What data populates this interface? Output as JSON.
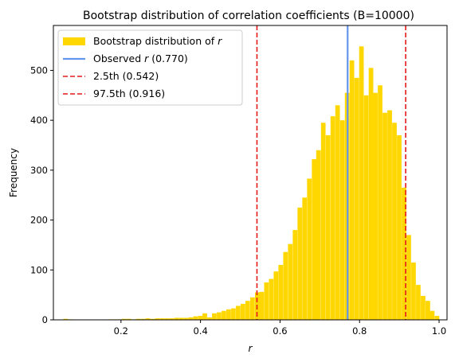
{
  "chart_data": {
    "type": "bar",
    "title": "Bootstrap distribution of correlation coefficients (B=10000)",
    "xlabel": "r",
    "ylabel": "Frequency",
    "xlim": [
      0.03,
      1.02
    ],
    "ylim": [
      0,
      590
    ],
    "xticks": [
      0.2,
      0.4,
      0.6,
      0.8,
      1.0
    ],
    "xtick_labels": [
      "0.2",
      "0.4",
      "0.6",
      "0.8",
      "1.0"
    ],
    "yticks": [
      0,
      100,
      200,
      300,
      400,
      500
    ],
    "ytick_labels": [
      "0",
      "100",
      "200",
      "300",
      "400",
      "500"
    ],
    "grid": false,
    "legend_position": "upper-left",
    "bin_width": 0.0115,
    "bin_starts": [
      0.055,
      0.069,
      0.166,
      0.178,
      0.19,
      0.202,
      0.214,
      0.226,
      0.238,
      0.25,
      0.262,
      0.274,
      0.286,
      0.298,
      0.31,
      0.322,
      0.334,
      0.346,
      0.358,
      0.37,
      0.382,
      0.394,
      0.405,
      0.417,
      0.429,
      0.441,
      0.453,
      0.465,
      0.477,
      0.489,
      0.501,
      0.513,
      0.525,
      0.537,
      0.548,
      0.56,
      0.572,
      0.584,
      0.596,
      0.608,
      0.62,
      0.632,
      0.644,
      0.656,
      0.668,
      0.68,
      0.691,
      0.703,
      0.715,
      0.727,
      0.739,
      0.751,
      0.763,
      0.775,
      0.787,
      0.799,
      0.811,
      0.823,
      0.834,
      0.846,
      0.858,
      0.87,
      0.882,
      0.894,
      0.906,
      0.918,
      0.93,
      0.942,
      0.954,
      0.966,
      0.977,
      0.989
    ],
    "values": [
      2,
      1,
      1,
      1,
      1,
      2,
      2,
      1,
      2,
      2,
      3,
      2,
      3,
      3,
      3,
      3,
      4,
      4,
      4,
      5,
      7,
      8,
      13,
      5,
      13,
      15,
      18,
      21,
      23,
      28,
      32,
      38,
      45,
      55,
      56,
      75,
      82,
      97,
      110,
      136,
      152,
      180,
      225,
      245,
      283,
      322,
      340,
      395,
      370,
      408,
      430,
      400,
      455,
      520,
      485,
      548,
      450,
      505,
      455,
      470,
      415,
      420,
      395,
      370,
      265,
      170,
      115,
      70,
      48,
      38,
      18,
      8
    ],
    "fill_color": "#ffd700",
    "series": [
      {
        "name": "Bootstrap distribution of r",
        "legend_label": "Bootstrap distribution of ",
        "legend_symbol": "r",
        "color": "#ffd700"
      },
      {
        "name": "Observed r (0.770)",
        "legend_label": "Observed ",
        "legend_symbol": "r",
        "legend_suffix": " (0.770)",
        "value": 0.77,
        "color": "#6495ed",
        "style": "solid"
      },
      {
        "name": "2.5th (0.542)",
        "legend_label": "2.5th (0.542)",
        "value": 0.542,
        "color": "#e41a1c",
        "style": "dashed"
      },
      {
        "name": "97.5th (0.916)",
        "legend_label": "97.5th (0.916)",
        "value": 0.916,
        "color": "#e41a1c",
        "style": "dashed"
      }
    ]
  }
}
